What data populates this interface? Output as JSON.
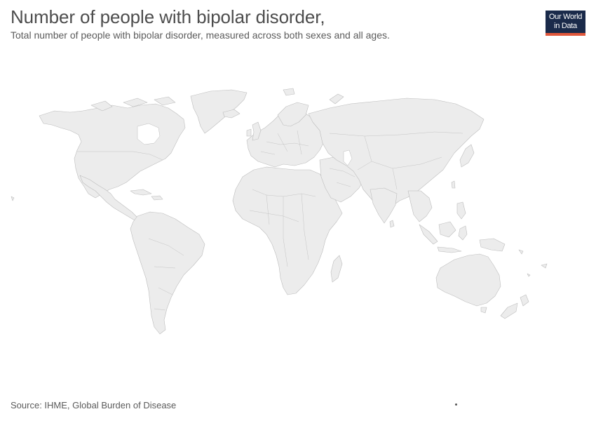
{
  "header": {
    "title": "Number of people with bipolar disorder,",
    "subtitle": "Total number of people with bipolar disorder, measured across both sexes and all ages."
  },
  "logo": {
    "line1": "Our World",
    "line2": "in Data"
  },
  "map": {
    "fill_color": "#ececec",
    "border_color": "#bdbdbd",
    "regions": [
      "North America",
      "South America",
      "Europe",
      "Africa",
      "Asia",
      "Oceania",
      "Greenland"
    ]
  },
  "footer": {
    "source": "Source: IHME, Global Burden of Disease"
  },
  "colors": {
    "logo_bg": "#1a2a4a",
    "logo_accent": "#e0573b",
    "title": "#4d4d4d"
  }
}
